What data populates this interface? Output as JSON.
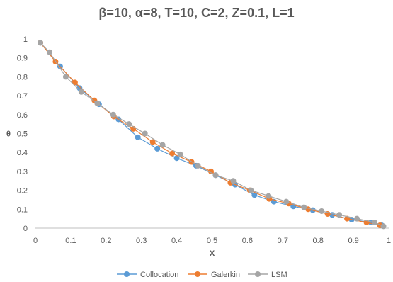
{
  "chart_data": {
    "type": "line",
    "title": "β=10, α=8, T=10, C=2, Z=0.1, L=1",
    "xlabel": "X",
    "ylabel": "θ",
    "xlim": [
      0,
      1
    ],
    "ylim": [
      0,
      1
    ],
    "xticks": [
      "0",
      "0.1",
      "0.2",
      "0.3",
      "0.4",
      "0.5",
      "0.6",
      "0.7",
      "0.8",
      "0.9",
      "1"
    ],
    "yticks": [
      "0",
      "0.1",
      "0.2",
      "0.3",
      "0.4",
      "0.5",
      "0.6",
      "0.7",
      "0.8",
      "0.9",
      "1"
    ],
    "grid": false,
    "legend": "bottom",
    "series": [
      {
        "name": "Collocation",
        "color": "#5b9bd5",
        "x": [
          0.014,
          0.07,
          0.125,
          0.18,
          0.235,
          0.29,
          0.345,
          0.4,
          0.455,
          0.51,
          0.565,
          0.62,
          0.675,
          0.73,
          0.785,
          0.84,
          0.895,
          0.95,
          0.98
        ],
        "y": [
          0.98,
          0.855,
          0.74,
          0.655,
          0.575,
          0.48,
          0.42,
          0.37,
          0.33,
          0.28,
          0.23,
          0.175,
          0.14,
          0.115,
          0.095,
          0.07,
          0.045,
          0.03,
          0.015
        ]
      },
      {
        "name": "Galerkin",
        "color": "#ed7d31",
        "x": [
          0.014,
          0.057,
          0.112,
          0.167,
          0.222,
          0.277,
          0.332,
          0.387,
          0.442,
          0.497,
          0.552,
          0.607,
          0.662,
          0.717,
          0.772,
          0.827,
          0.882,
          0.937,
          0.975
        ],
        "y": [
          0.98,
          0.88,
          0.77,
          0.675,
          0.59,
          0.525,
          0.455,
          0.395,
          0.35,
          0.3,
          0.24,
          0.2,
          0.155,
          0.13,
          0.1,
          0.075,
          0.05,
          0.03,
          0.015
        ]
      },
      {
        "name": "LSM",
        "color": "#a5a5a5",
        "x": [
          0.014,
          0.04,
          0.086,
          0.13,
          0.175,
          0.22,
          0.265,
          0.31,
          0.36,
          0.41,
          0.46,
          0.51,
          0.56,
          0.61,
          0.66,
          0.71,
          0.76,
          0.81,
          0.86,
          0.91,
          0.96,
          0.985
        ],
        "y": [
          0.98,
          0.93,
          0.8,
          0.72,
          0.66,
          0.6,
          0.55,
          0.5,
          0.44,
          0.39,
          0.33,
          0.28,
          0.25,
          0.2,
          0.17,
          0.14,
          0.11,
          0.09,
          0.07,
          0.05,
          0.03,
          0.01
        ]
      }
    ]
  }
}
